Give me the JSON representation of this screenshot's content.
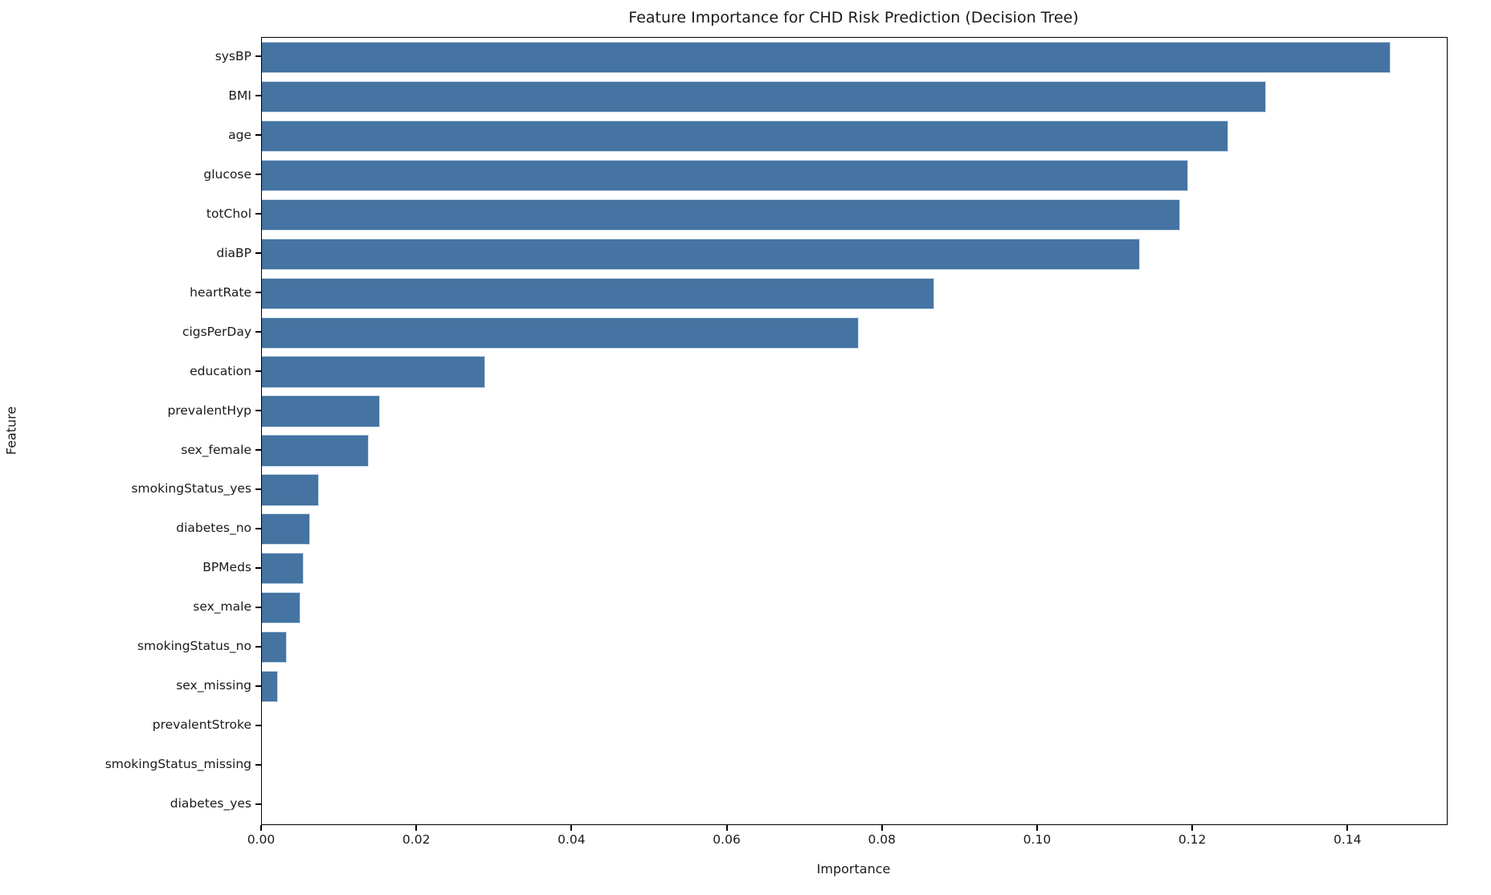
{
  "figure": {
    "background": "#ffffff",
    "text_color": "#1a1a1a",
    "spine_color": "#000000"
  },
  "chart_data": {
    "type": "bar",
    "orientation": "horizontal",
    "title": "Feature Importance for CHD Risk Prediction (Decision Tree)",
    "xlabel": "Importance",
    "ylabel": "Feature",
    "categories": [
      "sysBP",
      "BMI",
      "age",
      "glucose",
      "totChol",
      "diaBP",
      "heartRate",
      "cigsPerDay",
      "education",
      "prevalentHyp",
      "sex_female",
      "smokingStatus_yes",
      "diabetes_no",
      "BPMeds",
      "sex_male",
      "smokingStatus_no",
      "sex_missing",
      "prevalentStroke",
      "smokingStatus_missing",
      "diabetes_yes"
    ],
    "values": [
      0.1455,
      0.1294,
      0.1245,
      0.1194,
      0.1183,
      0.1132,
      0.0867,
      0.0769,
      0.0288,
      0.0152,
      0.0138,
      0.0073,
      0.0062,
      0.0054,
      0.005,
      0.0032,
      0.0021,
      0.0,
      0.0,
      0.0
    ],
    "xlim": [
      0,
      0.1527
    ],
    "x_ticks": [
      {
        "value": 0.0,
        "label": "0.00"
      },
      {
        "value": 0.02,
        "label": "0.02"
      },
      {
        "value": 0.04,
        "label": "0.04"
      },
      {
        "value": 0.06,
        "label": "0.06"
      },
      {
        "value": 0.08,
        "label": "0.08"
      },
      {
        "value": 0.1,
        "label": "0.10"
      },
      {
        "value": 0.12,
        "label": "0.12"
      },
      {
        "value": 0.14,
        "label": "0.14"
      }
    ],
    "grid": false,
    "legend": null,
    "bar_color": "#4574A2",
    "bar_edge_color": "#CBDCEC"
  }
}
